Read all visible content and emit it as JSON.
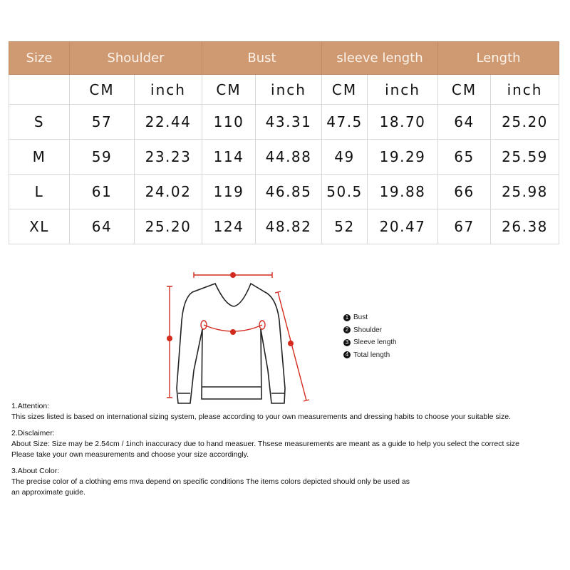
{
  "table": {
    "headers": [
      "Size",
      "Shoulder",
      "Bust",
      "sleeve length",
      "Length"
    ],
    "subheaders": [
      "CM",
      "inch",
      "CM",
      "inch",
      "CM",
      "inch",
      "CM",
      "inch"
    ],
    "rows": [
      [
        "S",
        "57",
        "22.44",
        "110",
        "43.31",
        "47.5",
        "18.70",
        "64",
        "25.20"
      ],
      [
        "M",
        "59",
        "23.23",
        "114",
        "44.88",
        "49",
        "19.29",
        "65",
        "25.59"
      ],
      [
        "L",
        "61",
        "24.02",
        "119",
        "46.85",
        "50.5",
        "19.88",
        "66",
        "25.98"
      ],
      [
        "XL",
        "64",
        "25.20",
        "124",
        "48.82",
        "52",
        "20.47",
        "67",
        "26.38"
      ]
    ],
    "header_color": "#cf9a72"
  },
  "legend": [
    {
      "num": "1",
      "label": "Bust"
    },
    {
      "num": "2",
      "label": "Shoulder"
    },
    {
      "num": "3",
      "label": "Sleeve length"
    },
    {
      "num": "4",
      "label": "Total length"
    }
  ],
  "notes": [
    {
      "title": "1.Attention:",
      "lines": [
        "This sizes listed is based on international sizing system, please according to your own measurements and dressing habits to choose your suitable size."
      ]
    },
    {
      "title": "2.Disclaimer:",
      "lines": [
        "About Size: Size may be 2.54cm / 1inch inaccuracy due to hand measuer. Thsese measurements are meant as a guide to help you select the correct size",
        "Please take your own measurements and choose your size accordingly."
      ]
    },
    {
      "title": "3.About Color:",
      "lines": [
        "The precise color of a clothing ems mva depend on specific conditions The items colors depicted should only be used as",
        "an approximate guide."
      ]
    }
  ],
  "measure_color": "#d42a1e"
}
